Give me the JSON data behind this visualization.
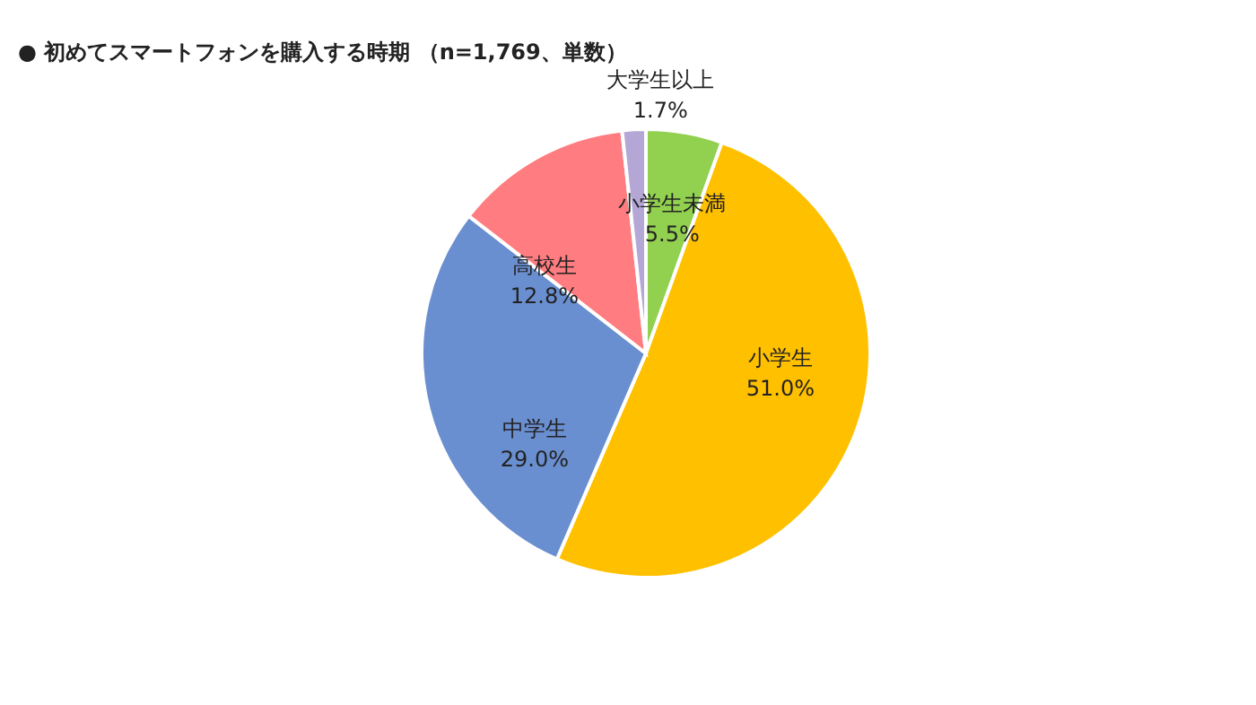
{
  "chart_data": {
    "type": "pie",
    "title": "●  初めてスマートフォンを購入する時期 （n=1,769、単数）",
    "categories": [
      "小学生未満",
      "小学生",
      "中学生",
      "高校生",
      "大学生以上"
    ],
    "values": [
      5.5,
      51.0,
      29.0,
      12.8,
      1.7
    ],
    "value_labels": [
      "5.5%",
      "51.0%",
      "29.0%",
      "12.8%",
      "1.7%"
    ],
    "colors": [
      "#92d050",
      "#ffc000",
      "#6a8fd0",
      "#ff7c80",
      "#b4a7d6"
    ]
  }
}
